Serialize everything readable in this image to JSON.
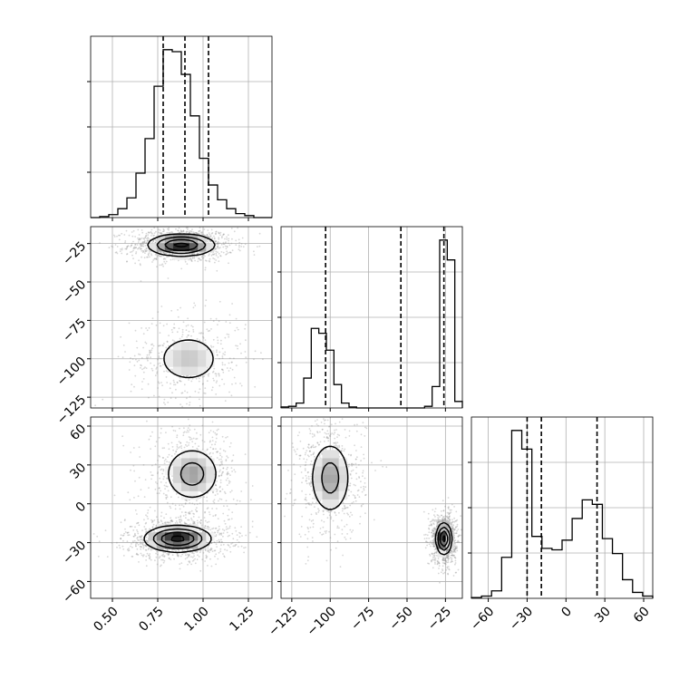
{
  "chart_data": {
    "type": "corner",
    "grid": true,
    "colors": {
      "line": "#000000",
      "grid": "#b0b0b0",
      "scatter": "#8c8c8c"
    },
    "params": [
      {
        "name": "",
        "range": [
          0.38,
          1.38
        ],
        "ticks": [
          0.5,
          0.75,
          1.0,
          1.25
        ],
        "tick_labels": [
          "0.50",
          "0.75",
          "1.00",
          "1.25"
        ],
        "quantiles": [
          0.78,
          0.9,
          1.03
        ]
      },
      {
        "name": "",
        "range": [
          -132,
          -14
        ],
        "ticks": [
          -125,
          -100,
          -75,
          -50,
          -25
        ],
        "tick_labels": [
          "−125",
          "−100",
          "−75",
          "−50",
          "−25"
        ],
        "quantiles": [
          -103,
          -54,
          -26
        ]
      },
      {
        "name": "",
        "range": [
          -73,
          67
        ],
        "ticks": [
          -60,
          -30,
          0,
          30,
          60
        ],
        "tick_labels": [
          "−60",
          "−30",
          "0",
          "30",
          "60"
        ],
        "quantiles": [
          -30,
          -19,
          24
        ]
      }
    ],
    "histograms": [
      {
        "param": 0,
        "range": [
          0.38,
          1.38
        ],
        "counts": [
          0,
          1,
          3,
          9,
          20,
          45,
          80,
          133,
          170,
          168,
          145,
          103,
          60,
          33,
          18,
          9,
          4,
          2,
          0,
          0
        ]
      },
      {
        "param": 1,
        "range": [
          -132,
          -14
        ],
        "counts": [
          3,
          5,
          15,
          92,
          245,
          230,
          178,
          72,
          15,
          3,
          0,
          0,
          0,
          0,
          0,
          0,
          0,
          0,
          0,
          5,
          66,
          517,
          456,
          20
        ]
      },
      {
        "param": 2,
        "range": [
          -73,
          67
        ],
        "counts": [
          1,
          3,
          10,
          55,
          225,
          200,
          83,
          67,
          65,
          78,
          107,
          132,
          126,
          80,
          60,
          25,
          8,
          3
        ]
      }
    ],
    "contours_2d": [
      {
        "x_param": 0,
        "y_param": 1,
        "modes": [
          {
            "x": 0.88,
            "y": -26,
            "sx": 0.09,
            "sy": 3.5,
            "peak": 1.0
          },
          {
            "x": 0.92,
            "y": -100,
            "sx": 0.1,
            "sy": 9,
            "peak": 0.3
          }
        ]
      },
      {
        "x_param": 0,
        "y_param": 2,
        "modes": [
          {
            "x": 0.86,
            "y": -27,
            "sx": 0.09,
            "sy": 5.0,
            "peak": 1.0
          },
          {
            "x": 0.94,
            "y": 23,
            "sx": 0.08,
            "sy": 11,
            "peak": 0.45
          }
        ]
      },
      {
        "x_param": 1,
        "y_param": 2,
        "modes": [
          {
            "x": -100,
            "y": 20,
            "sx": 7,
            "sy": 15,
            "peak": 0.45
          },
          {
            "x": -26,
            "y": -27,
            "sx": 2.5,
            "sy": 6,
            "peak": 1.0
          }
        ]
      }
    ]
  }
}
